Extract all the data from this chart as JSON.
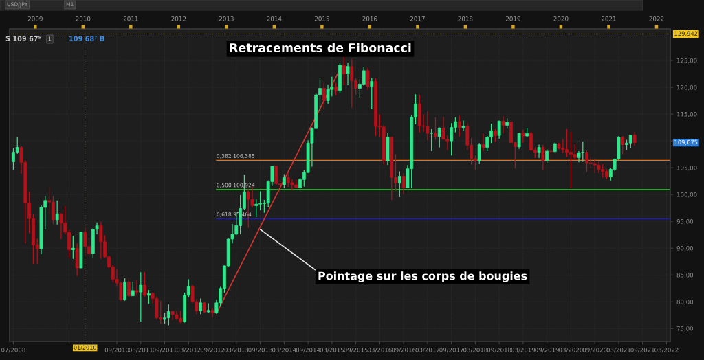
{
  "chart_data": {
    "type": "candlestick",
    "title": "Retracements de Fibonacci",
    "x": [
      "2008-07",
      "2008-08",
      "2008-09",
      "2008-10",
      "2008-11",
      "2008-12",
      "2009-01",
      "2009-02",
      "2009-03",
      "2009-04",
      "2009-05",
      "2009-06",
      "2009-07",
      "2009-08",
      "2009-09",
      "2009-10",
      "2009-11",
      "2009-12",
      "2010-01",
      "2010-02",
      "2010-03",
      "2010-04",
      "2010-05",
      "2010-06",
      "2010-07",
      "2010-08",
      "2010-09",
      "2010-10",
      "2010-11",
      "2010-12",
      "2011-01",
      "2011-02",
      "2011-03",
      "2011-04",
      "2011-05",
      "2011-06",
      "2011-07",
      "2011-08",
      "2011-09",
      "2011-10",
      "2011-11",
      "2011-12",
      "2012-01",
      "2012-02",
      "2012-03",
      "2012-04",
      "2012-05",
      "2012-06",
      "2012-07",
      "2012-08",
      "2012-09",
      "2012-10",
      "2012-11",
      "2012-12",
      "2013-01",
      "2013-02",
      "2013-03",
      "2013-04",
      "2013-05",
      "2013-06",
      "2013-07",
      "2013-08",
      "2013-09",
      "2013-10",
      "2013-11",
      "2013-12",
      "2014-01",
      "2014-02",
      "2014-03",
      "2014-04",
      "2014-05",
      "2014-06",
      "2014-07",
      "2014-08",
      "2014-09",
      "2014-10",
      "2014-11",
      "2014-12",
      "2015-01",
      "2015-02",
      "2015-03",
      "2015-04",
      "2015-05",
      "2015-06",
      "2015-07",
      "2015-08",
      "2015-09",
      "2015-10",
      "2015-11",
      "2015-12",
      "2016-01",
      "2016-02",
      "2016-03",
      "2016-04",
      "2016-05",
      "2016-06",
      "2016-07",
      "2016-08",
      "2016-09",
      "2016-10",
      "2016-11",
      "2016-12",
      "2017-01",
      "2017-02",
      "2017-03",
      "2017-04",
      "2017-05",
      "2017-06",
      "2017-07",
      "2017-08",
      "2017-09",
      "2017-10",
      "2017-11",
      "2017-12",
      "2018-01",
      "2018-02",
      "2018-03",
      "2018-04",
      "2018-05",
      "2018-06",
      "2018-07",
      "2018-08",
      "2018-09",
      "2018-10",
      "2018-11",
      "2018-12",
      "2019-01",
      "2019-02",
      "2019-03",
      "2019-04",
      "2019-05",
      "2019-06",
      "2019-07",
      "2019-08",
      "2019-09",
      "2019-10",
      "2019-11",
      "2019-12",
      "2020-01",
      "2020-02",
      "2020-03",
      "2020-04",
      "2020-05",
      "2020-06",
      "2020-07",
      "2020-08",
      "2020-09",
      "2020-10",
      "2020-11",
      "2020-12",
      "2021-01",
      "2021-02",
      "2021-03",
      "2021-04",
      "2021-05",
      "2021-06",
      "2021-07"
    ],
    "ohlc": [
      [
        106.1,
        108.6,
        104.6,
        107.9
      ],
      [
        107.9,
        110.7,
        107.6,
        108.8
      ],
      [
        108.8,
        109.0,
        103.9,
        106.0
      ],
      [
        106.0,
        106.4,
        90.9,
        98.4
      ],
      [
        98.4,
        100.5,
        92.8,
        95.5
      ],
      [
        95.5,
        96.3,
        87.1,
        90.6
      ],
      [
        90.6,
        91.8,
        87.1,
        89.9
      ],
      [
        89.9,
        98.0,
        88.9,
        97.6
      ],
      [
        97.6,
        99.7,
        93.5,
        98.9
      ],
      [
        98.9,
        101.4,
        96.4,
        98.6
      ],
      [
        98.6,
        99.7,
        94.5,
        95.3
      ],
      [
        95.3,
        98.9,
        94.4,
        96.4
      ],
      [
        96.4,
        96.5,
        91.7,
        94.7
      ],
      [
        94.7,
        97.8,
        92.6,
        93.0
      ],
      [
        93.0,
        93.4,
        88.2,
        89.7
      ],
      [
        89.7,
        92.3,
        88.0,
        90.0
      ],
      [
        90.0,
        90.9,
        84.8,
        86.3
      ],
      [
        86.3,
        93.1,
        86.3,
        93.0
      ],
      [
        93.0,
        93.8,
        88.6,
        90.3
      ],
      [
        90.3,
        92.0,
        88.4,
        89.0
      ],
      [
        89.0,
        93.7,
        88.1,
        93.5
      ],
      [
        93.5,
        94.8,
        92.6,
        94.2
      ],
      [
        94.2,
        94.9,
        88.0,
        91.2
      ],
      [
        91.2,
        92.4,
        88.2,
        88.4
      ],
      [
        88.4,
        88.6,
        86.3,
        86.5
      ],
      [
        86.5,
        86.9,
        83.6,
        84.2
      ],
      [
        84.2,
        86.0,
        82.9,
        83.5
      ],
      [
        83.5,
        83.7,
        80.2,
        80.4
      ],
      [
        80.4,
        84.4,
        80.2,
        83.7
      ],
      [
        83.7,
        84.5,
        80.9,
        81.1
      ],
      [
        81.1,
        83.7,
        81.1,
        82.1
      ],
      [
        82.1,
        84.0,
        81.1,
        81.8
      ],
      [
        81.8,
        85.5,
        76.3,
        83.1
      ],
      [
        83.1,
        85.5,
        81.0,
        81.2
      ],
      [
        81.2,
        82.2,
        79.6,
        81.5
      ],
      [
        81.5,
        81.8,
        79.7,
        80.6
      ],
      [
        80.6,
        81.0,
        76.7,
        77.0
      ],
      [
        77.0,
        80.2,
        75.9,
        76.7
      ],
      [
        76.7,
        77.9,
        75.9,
        77.0
      ],
      [
        77.0,
        79.5,
        75.6,
        78.2
      ],
      [
        78.2,
        78.3,
        76.6,
        77.6
      ],
      [
        77.6,
        78.3,
        76.6,
        76.9
      ],
      [
        76.9,
        78.3,
        76.0,
        76.3
      ],
      [
        76.3,
        81.7,
        76.1,
        81.2
      ],
      [
        81.2,
        84.2,
        80.9,
        82.9
      ],
      [
        82.9,
        83.1,
        79.8,
        80.0
      ],
      [
        80.0,
        80.5,
        77.7,
        78.3
      ],
      [
        78.3,
        80.6,
        77.7,
        79.8
      ],
      [
        79.8,
        79.9,
        77.9,
        78.1
      ],
      [
        78.1,
        79.7,
        77.9,
        78.4
      ],
      [
        78.4,
        78.9,
        77.1,
        77.9
      ],
      [
        77.9,
        80.4,
        77.8,
        79.8
      ],
      [
        79.8,
        82.8,
        79.1,
        82.5
      ],
      [
        82.5,
        86.8,
        81.7,
        86.7
      ],
      [
        86.7,
        91.8,
        86.5,
        91.7
      ],
      [
        91.7,
        94.5,
        90.9,
        92.6
      ],
      [
        92.6,
        96.7,
        92.5,
        94.2
      ],
      [
        94.2,
        99.9,
        92.6,
        97.4
      ],
      [
        97.4,
        103.7,
        97.2,
        100.5
      ],
      [
        100.5,
        101.0,
        93.8,
        99.1
      ],
      [
        99.1,
        101.5,
        97.6,
        97.9
      ],
      [
        97.9,
        99.1,
        95.8,
        98.2
      ],
      [
        98.2,
        100.6,
        97.1,
        98.3
      ],
      [
        98.3,
        99.0,
        96.6,
        98.4
      ],
      [
        98.4,
        102.6,
        97.6,
        102.4
      ],
      [
        102.4,
        105.4,
        101.6,
        105.3
      ],
      [
        105.3,
        105.4,
        101.8,
        102.0
      ],
      [
        102.0,
        102.8,
        100.8,
        101.8
      ],
      [
        101.8,
        103.8,
        101.2,
        103.2
      ],
      [
        103.2,
        104.1,
        101.4,
        102.2
      ],
      [
        102.2,
        102.8,
        100.8,
        101.8
      ],
      [
        101.8,
        102.8,
        101.2,
        101.3
      ],
      [
        101.3,
        103.1,
        101.1,
        102.8
      ],
      [
        102.8,
        104.5,
        101.5,
        104.1
      ],
      [
        104.1,
        110.1,
        104.0,
        109.6
      ],
      [
        109.6,
        112.5,
        105.2,
        112.3
      ],
      [
        112.3,
        118.9,
        112.3,
        118.6
      ],
      [
        118.6,
        121.8,
        115.6,
        119.8
      ],
      [
        119.8,
        120.8,
        115.9,
        117.5
      ],
      [
        117.5,
        120.5,
        116.9,
        119.6
      ],
      [
        119.6,
        122.0,
        118.3,
        120.1
      ],
      [
        120.1,
        120.8,
        118.5,
        119.4
      ],
      [
        119.4,
        124.5,
        118.9,
        124.1
      ],
      [
        124.1,
        125.9,
        120.4,
        122.5
      ],
      [
        122.5,
        124.6,
        120.4,
        123.9
      ],
      [
        123.9,
        125.3,
        116.2,
        121.2
      ],
      [
        121.2,
        121.7,
        118.6,
        119.8
      ],
      [
        119.8,
        121.5,
        118.1,
        120.6
      ],
      [
        120.6,
        123.8,
        120.3,
        123.1
      ],
      [
        123.1,
        123.7,
        119.5,
        120.2
      ],
      [
        120.2,
        121.7,
        115.9,
        121.1
      ],
      [
        121.1,
        121.7,
        110.9,
        112.7
      ],
      [
        112.7,
        114.9,
        110.7,
        112.6
      ],
      [
        112.6,
        112.9,
        105.6,
        106.3
      ],
      [
        106.3,
        111.5,
        105.5,
        110.7
      ],
      [
        110.7,
        110.8,
        99.0,
        103.2
      ],
      [
        103.2,
        107.5,
        100.7,
        102.1
      ],
      [
        102.1,
        104.3,
        99.5,
        103.4
      ],
      [
        103.4,
        104.0,
        100.1,
        101.3
      ],
      [
        101.3,
        105.5,
        101.2,
        104.8
      ],
      [
        104.8,
        114.8,
        101.2,
        114.4
      ],
      [
        114.4,
        118.7,
        113.1,
        116.9
      ],
      [
        116.9,
        118.6,
        111.6,
        112.8
      ],
      [
        112.8,
        114.9,
        111.7,
        112.7
      ],
      [
        112.7,
        115.5,
        110.1,
        111.4
      ],
      [
        111.4,
        112.2,
        108.1,
        111.5
      ],
      [
        111.5,
        114.4,
        110.2,
        110.8
      ],
      [
        110.8,
        112.5,
        108.8,
        112.4
      ],
      [
        112.4,
        114.5,
        110.3,
        110.3
      ],
      [
        110.3,
        111.0,
        108.3,
        110.0
      ],
      [
        110.0,
        113.3,
        107.3,
        112.5
      ],
      [
        112.5,
        114.4,
        111.6,
        113.6
      ],
      [
        113.6,
        114.7,
        110.8,
        112.5
      ],
      [
        112.5,
        113.8,
        111.9,
        112.7
      ],
      [
        112.7,
        113.4,
        108.3,
        109.2
      ],
      [
        109.2,
        110.5,
        105.6,
        106.7
      ],
      [
        106.7,
        107.3,
        104.6,
        106.3
      ],
      [
        106.3,
        109.6,
        105.7,
        109.3
      ],
      [
        109.3,
        111.4,
        108.1,
        108.8
      ],
      [
        108.8,
        110.9,
        108.1,
        110.7
      ],
      [
        110.7,
        113.2,
        109.6,
        111.9
      ],
      [
        111.9,
        112.2,
        109.8,
        111.0
      ],
      [
        111.0,
        113.8,
        110.4,
        113.7
      ],
      [
        113.7,
        114.6,
        111.4,
        112.9
      ],
      [
        112.9,
        114.2,
        112.3,
        113.5
      ],
      [
        113.5,
        113.8,
        109.6,
        109.7
      ],
      [
        109.7,
        109.9,
        104.9,
        108.9
      ],
      [
        108.9,
        111.5,
        108.5,
        111.4
      ],
      [
        111.4,
        112.1,
        109.7,
        110.9
      ],
      [
        110.9,
        112.4,
        110.8,
        111.4
      ],
      [
        111.4,
        111.7,
        108.2,
        108.3
      ],
      [
        108.3,
        108.8,
        106.8,
        107.9
      ],
      [
        107.9,
        109.3,
        106.8,
        108.8
      ],
      [
        108.8,
        109.3,
        104.5,
        106.3
      ],
      [
        106.3,
        108.5,
        105.9,
        108.1
      ],
      [
        108.1,
        109.3,
        106.5,
        108.0
      ],
      [
        108.0,
        109.7,
        107.9,
        109.5
      ],
      [
        109.5,
        109.7,
        108.4,
        108.6
      ],
      [
        108.6,
        110.3,
        107.7,
        108.4
      ],
      [
        108.4,
        112.2,
        107.0,
        107.9
      ],
      [
        107.9,
        111.7,
        101.2,
        107.5
      ],
      [
        107.5,
        109.4,
        106.4,
        106.9
      ],
      [
        106.9,
        108.1,
        106.0,
        107.8
      ],
      [
        107.8,
        109.9,
        106.1,
        107.9
      ],
      [
        107.9,
        108.2,
        104.2,
        105.9
      ],
      [
        105.9,
        107.1,
        104.9,
        105.8
      ],
      [
        105.8,
        106.6,
        104.0,
        105.5
      ],
      [
        105.5,
        106.1,
        104.0,
        104.7
      ],
      [
        104.7,
        105.7,
        103.2,
        104.3
      ],
      [
        104.3,
        104.7,
        102.9,
        103.3
      ],
      [
        103.3,
        104.9,
        102.6,
        104.7
      ],
      [
        104.7,
        106.7,
        104.4,
        106.6
      ],
      [
        106.6,
        110.9,
        106.4,
        110.7
      ],
      [
        110.7,
        110.9,
        107.5,
        109.3
      ],
      [
        109.3,
        110.2,
        108.3,
        109.6
      ],
      [
        109.6,
        111.1,
        108.6,
        111.1
      ],
      [
        111.1,
        111.7,
        109.1,
        109.7
      ]
    ],
    "colors": [
      "#2ee98c",
      "#2ee98c",
      "#b3121b",
      "#b3121b",
      "#b3121b",
      "#b3121b",
      "#b3121b",
      "#2ee98c",
      "#2ee98c",
      "#b3121b",
      "#b3121b",
      "#2ee98c",
      "#b3121b",
      "#b3121b",
      "#b3121b",
      "#2ee98c",
      "#b3121b",
      "#2ee98c",
      "#b3121b",
      "#b3121b",
      "#2ee98c",
      "#2ee98c",
      "#b3121b",
      "#b3121b",
      "#b3121b",
      "#b3121b",
      "#b3121b",
      "#b3121b",
      "#2ee98c",
      "#b3121b",
      "#2ee98c",
      "#b3121b",
      "#2ee98c",
      "#b3121b",
      "#2ee98c",
      "#b3121b",
      "#b3121b",
      "#b3121b",
      "#2ee98c",
      "#2ee98c",
      "#b3121b",
      "#b3121b",
      "#b3121b",
      "#2ee98c",
      "#2ee98c",
      "#b3121b",
      "#b3121b",
      "#2ee98c",
      "#b3121b",
      "#2ee98c",
      "#b3121b",
      "#2ee98c",
      "#2ee98c",
      "#2ee98c",
      "#2ee98c",
      "#2ee98c",
      "#2ee98c",
      "#2ee98c",
      "#2ee98c",
      "#b3121b",
      "#b3121b",
      "#2ee98c",
      "#2ee98c",
      "#2ee98c",
      "#2ee98c",
      "#2ee98c",
      "#b3121b",
      "#b3121b",
      "#2ee98c",
      "#b3121b",
      "#b3121b",
      "#b3121b",
      "#2ee98c",
      "#2ee98c",
      "#2ee98c",
      "#2ee98c",
      "#2ee98c",
      "#2ee98c",
      "#b3121b",
      "#2ee98c",
      "#2ee98c",
      "#b3121b",
      "#2ee98c",
      "#b3121b",
      "#2ee98c",
      "#b3121b",
      "#b3121b",
      "#2ee98c",
      "#2ee98c",
      "#b3121b",
      "#2ee98c",
      "#b3121b",
      "#b3121b",
      "#b3121b",
      "#2ee98c",
      "#b3121b",
      "#b3121b",
      "#2ee98c",
      "#b3121b",
      "#2ee98c",
      "#2ee98c",
      "#2ee98c",
      "#b3121b",
      "#b3121b",
      "#b3121b",
      "#2ee98c",
      "#b3121b",
      "#2ee98c",
      "#b3121b",
      "#b3121b",
      "#2ee98c",
      "#2ee98c",
      "#b3121b",
      "#2ee98c",
      "#b3121b",
      "#b3121b",
      "#b3121b",
      "#2ee98c",
      "#b3121b",
      "#2ee98c",
      "#2ee98c",
      "#b3121b",
      "#2ee98c",
      "#b3121b",
      "#2ee98c",
      "#b3121b",
      "#b3121b",
      "#2ee98c",
      "#b3121b",
      "#2ee98c",
      "#b3121b",
      "#b3121b",
      "#2ee98c",
      "#b3121b",
      "#2ee98c",
      "#b3121b",
      "#2ee98c",
      "#b3121b",
      "#b3121b",
      "#b3121b",
      "#b3121b",
      "#b3121b",
      "#2ee98c",
      "#2ee98c",
      "#b3121b",
      "#b3121b",
      "#b3121b",
      "#b3121b",
      "#b3121b",
      "#b3121b",
      "#2ee98c",
      "#2ee98c",
      "#2ee98c",
      "#b3121b",
      "#2ee98c",
      "#2ee98c",
      "#b3121b"
    ],
    "series": [
      {
        "type": "line",
        "x": [
          "2012-10",
          "2015-06-01"
        ],
        "values": [
          77.8,
          124.1
        ],
        "color": "#d2352f"
      }
    ],
    "xlim": [
      "2008-06-18",
      "2022-04-15"
    ],
    "ylim": [
      72.6,
      130.9
    ],
    "xticks": [
      {
        "value": "2008-07",
        "label": "07/2008"
      },
      {
        "value": "2009-09",
        "label": null
      },
      {
        "value": "2010-03",
        "label": null
      },
      {
        "value": "2010-09",
        "label": "09/2010"
      },
      {
        "value": "2011-03",
        "label": "03/2011"
      },
      {
        "value": "2011-09",
        "label": "09/2011"
      },
      {
        "value": "2012-03",
        "label": "03/2012"
      },
      {
        "value": "2012-09",
        "label": "09/2012"
      },
      {
        "value": "2013-03",
        "label": "03/2013"
      },
      {
        "value": "2013-09",
        "label": "09/2013"
      },
      {
        "value": "2014-03",
        "label": "03/2014"
      },
      {
        "value": "2014-09",
        "label": "09/2014"
      },
      {
        "value": "2015-03",
        "label": "03/2015"
      },
      {
        "value": "2015-09",
        "label": "09/2015"
      },
      {
        "value": "2016-03",
        "label": "03/2016"
      },
      {
        "value": "2016-09",
        "label": "09/2016"
      },
      {
        "value": "2017-03",
        "label": "03/2017"
      },
      {
        "value": "2017-09",
        "label": "09/2017"
      },
      {
        "value": "2018-03",
        "label": "03/2018"
      },
      {
        "value": "2018-09",
        "label": "09/2018"
      },
      {
        "value": "2019-03",
        "label": "03/2019"
      },
      {
        "value": "2019-09",
        "label": "09/2019"
      },
      {
        "value": "2020-03",
        "label": "03/2020"
      },
      {
        "value": "2020-09",
        "label": "09/2020"
      },
      {
        "value": "2021-03",
        "label": "03/2021"
      },
      {
        "value": "2021-09",
        "label": "09/2021"
      },
      {
        "value": "2022-03",
        "label": "03/2022"
      }
    ],
    "yticks": [
      {
        "value": 75,
        "label": "75,00"
      },
      {
        "value": 80,
        "label": "80,00"
      },
      {
        "value": 85,
        "label": "85,00"
      },
      {
        "value": 90,
        "label": "90,00"
      },
      {
        "value": 95,
        "label": "95,00"
      },
      {
        "value": 100,
        "label": "100,00"
      },
      {
        "value": 105,
        "label": "105,00"
      },
      {
        "value": 110,
        "label": null
      },
      {
        "value": 115,
        "label": "115,00"
      },
      {
        "value": 120,
        "label": "120,00"
      },
      {
        "value": 125,
        "label": "125,00"
      }
    ],
    "x2lim": [
      "2008-06-18",
      "2022-04-15"
    ],
    "x2ticks": [
      {
        "value": "2009",
        "label": "2009"
      },
      {
        "value": "2010",
        "label": "2010"
      },
      {
        "value": "2011",
        "label": "2011"
      },
      {
        "value": "2012",
        "label": "2012"
      },
      {
        "value": "2013",
        "label": "2013"
      },
      {
        "value": "2014",
        "label": "2014"
      },
      {
        "value": "2015",
        "label": "2015"
      },
      {
        "value": "2016",
        "label": "2016"
      },
      {
        "value": "2017",
        "label": "2017"
      },
      {
        "value": "2018",
        "label": "2018"
      },
      {
        "value": "2019",
        "label": "2019"
      },
      {
        "value": "2020",
        "label": "2020"
      },
      {
        "value": "2021",
        "label": "2021"
      },
      {
        "value": "2022",
        "label": "2022"
      }
    ],
    "grid": true,
    "ref_lines": [
      {
        "axis": "y",
        "value": 106.385,
        "label": "0,382 106,385",
        "color": "#e2711d",
        "line_style": "solid"
      },
      {
        "axis": "y",
        "value": 100.924,
        "label": "0,500 100,924",
        "color": "#35d13a",
        "line_style": "solid"
      },
      {
        "axis": "y",
        "value": 95.464,
        "label": "0,618 95,464",
        "color": "#1c1ca8",
        "line_style": "solid"
      },
      {
        "axis": "x",
        "value": "2010-01",
        "label": "01/2010",
        "color": "#f0c419",
        "line_style": "dotted"
      },
      {
        "axis": "y",
        "value": 129.942,
        "label": "129,942",
        "color": "#f0c419",
        "line_style": "dotted"
      }
    ],
    "annotations": [
      {
        "text": "Pointage sur les corps de bougies",
        "x": "2013-09",
        "y": 93.5
      },
      {
        "text": "109,675",
        "y": 109.675
      },
      "USD/JPY",
      "M1",
      "S 109 67⁵",
      "1",
      "109 68⁷ B"
    ]
  }
}
